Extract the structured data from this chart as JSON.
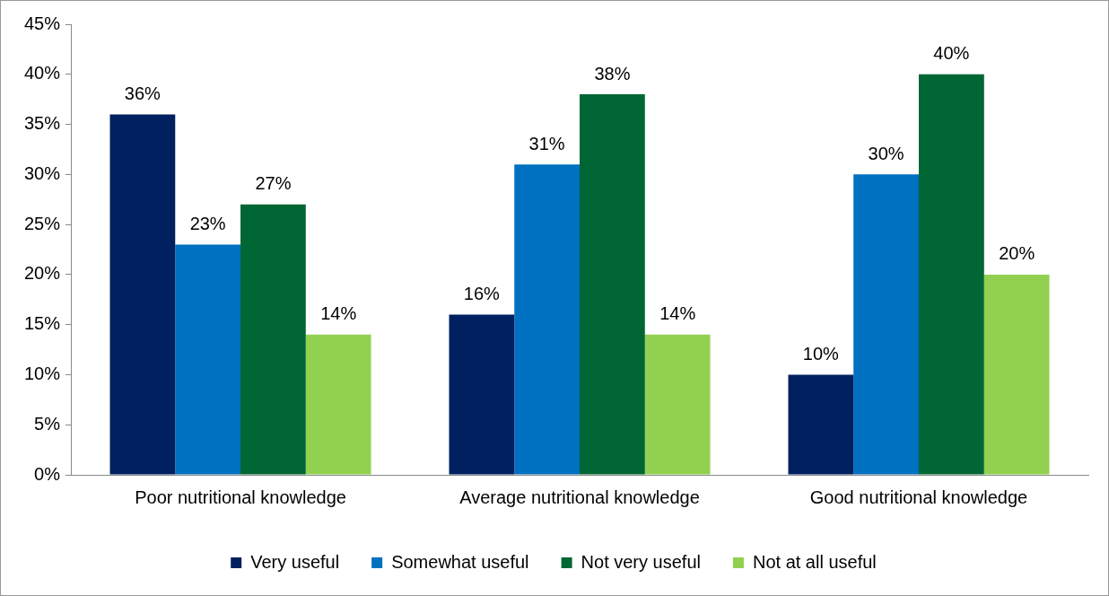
{
  "chart_data": {
    "type": "bar",
    "categories": [
      "Poor nutritional knowledge",
      "Average nutritional knowledge",
      "Good nutritional knowledge"
    ],
    "series": [
      {
        "name": "Very useful",
        "color": "#002060",
        "values": [
          36,
          16,
          10
        ],
        "value_labels": [
          "36%",
          "16%",
          "10%"
        ]
      },
      {
        "name": "Somewhat useful",
        "color": "#0070c0",
        "values": [
          23,
          31,
          30
        ],
        "value_labels": [
          "23%",
          "31%",
          "30%"
        ]
      },
      {
        "name": "Not very useful",
        "color": "#006633",
        "values": [
          27,
          38,
          40
        ],
        "value_labels": [
          "27%",
          "38%",
          "40%"
        ]
      },
      {
        "name": "Not at all useful",
        "color": "#92d050",
        "values": [
          14,
          14,
          20
        ],
        "value_labels": [
          "14%",
          "14%",
          "20%"
        ]
      }
    ],
    "ylim": [
      0,
      45
    ],
    "yticks": [
      {
        "value": 0,
        "label": "0%"
      },
      {
        "value": 5,
        "label": "5%"
      },
      {
        "value": 10,
        "label": "10%"
      },
      {
        "value": 15,
        "label": "15%"
      },
      {
        "value": 20,
        "label": "20%"
      },
      {
        "value": 25,
        "label": "25%"
      },
      {
        "value": 30,
        "label": "30%"
      },
      {
        "value": 35,
        "label": "35%"
      },
      {
        "value": 40,
        "label": "40%"
      },
      {
        "value": 45,
        "label": "45%"
      }
    ],
    "grid": false,
    "legend": "bottom"
  }
}
